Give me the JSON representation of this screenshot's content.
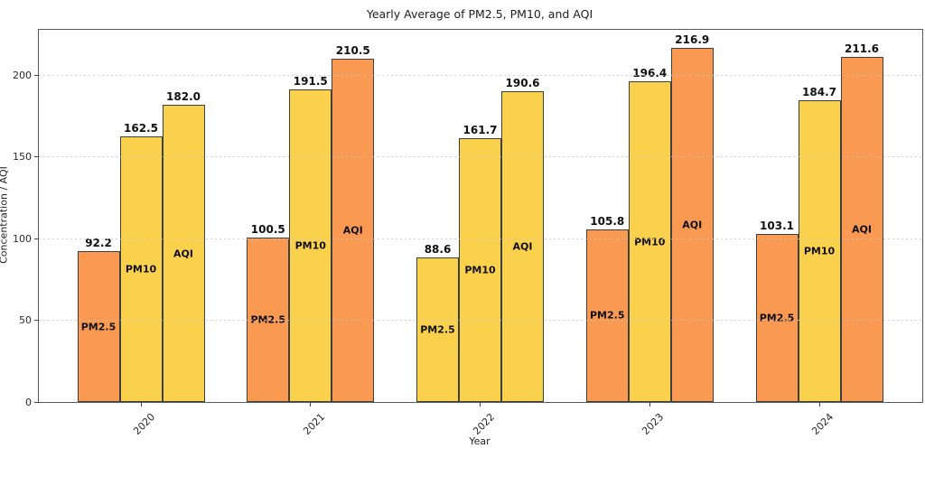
{
  "chart_data": {
    "type": "bar",
    "title": "Yearly Average of PM2.5, PM10, and AQI",
    "xlabel": "Year",
    "ylabel": "Concentration / AQI",
    "categories": [
      "2020",
      "2021",
      "2022",
      "2023",
      "2024"
    ],
    "series": [
      {
        "name": "PM2.5",
        "values": [
          92.2,
          100.5,
          88.6,
          105.8,
          103.1
        ],
        "bar_colors": [
          "orange",
          "orange",
          "yellow",
          "orange",
          "orange"
        ]
      },
      {
        "name": "PM10",
        "values": [
          162.5,
          191.5,
          161.7,
          196.4,
          184.7
        ],
        "bar_colors": [
          "yellow",
          "yellow",
          "yellow",
          "yellow",
          "yellow"
        ]
      },
      {
        "name": "AQI",
        "values": [
          182.0,
          210.5,
          190.6,
          216.9,
          211.6
        ],
        "bar_colors": [
          "yellow",
          "orange",
          "yellow",
          "orange",
          "orange"
        ]
      }
    ],
    "value_label_decimals": 1,
    "yticks": [
      0,
      50,
      100,
      150,
      200
    ],
    "ylim": [
      0,
      228
    ],
    "grid": "horizontal dashed, drawn over bars",
    "legend_position": "labels inside bars",
    "palette": {
      "orange": "#FA9A52",
      "yellow": "#FAD14D",
      "edge": "#3F3F3F",
      "grid": "#C6C6C6",
      "text": "#111111"
    }
  }
}
